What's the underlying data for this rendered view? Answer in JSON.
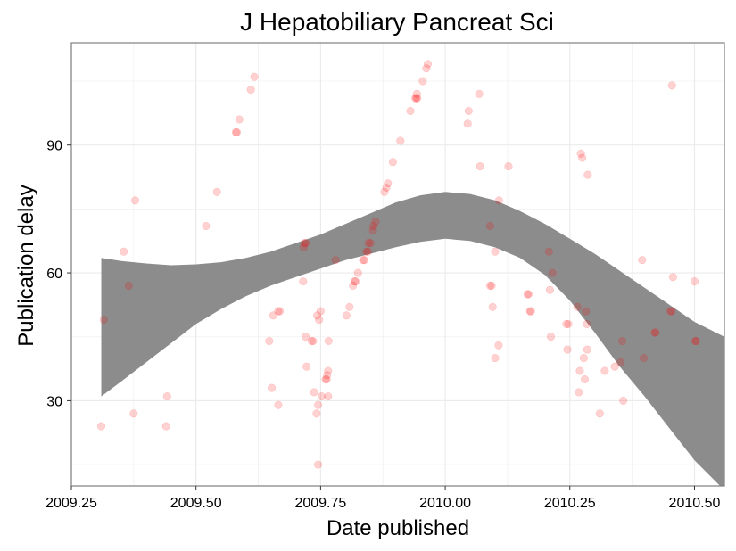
{
  "chart_data": {
    "type": "scatter",
    "title": "J Hepatobiliary Pancreat Sci",
    "xlabel": "Date published",
    "ylabel": "Publication delay",
    "xlim": [
      2009.25,
      2010.56
    ],
    "ylim": [
      10,
      114
    ],
    "x_ticks": [
      2009.25,
      2009.5,
      2009.75,
      2010.0,
      2010.25,
      2010.5
    ],
    "x_tick_labels": [
      "2009.25",
      "2009.50",
      "2009.75",
      "2010.00",
      "2010.25",
      "2010.50"
    ],
    "y_ticks": [
      30,
      60,
      90
    ],
    "y_tick_labels": [
      "30",
      "60",
      "90"
    ],
    "grid": true,
    "point_color": "#ff0000",
    "point_opacity": 0.18,
    "ribbon_color": "#8c8c8c",
    "points": [
      [
        2009.31,
        24
      ],
      [
        2009.315,
        49
      ],
      [
        2009.355,
        65
      ],
      [
        2009.365,
        57
      ],
      [
        2009.375,
        27
      ],
      [
        2009.378,
        77
      ],
      [
        2009.44,
        24
      ],
      [
        2009.442,
        31
      ],
      [
        2009.52,
        71
      ],
      [
        2009.542,
        79
      ],
      [
        2009.58,
        93
      ],
      [
        2009.582,
        93
      ],
      [
        2009.587,
        96
      ],
      [
        2009.61,
        103
      ],
      [
        2009.617,
        106
      ],
      [
        2009.647,
        44
      ],
      [
        2009.652,
        33
      ],
      [
        2009.655,
        50
      ],
      [
        2009.665,
        29
      ],
      [
        2009.665,
        51
      ],
      [
        2009.668,
        51
      ],
      [
        2009.715,
        58
      ],
      [
        2009.716,
        66
      ],
      [
        2009.718,
        67
      ],
      [
        2009.72,
        67
      ],
      [
        2009.72,
        45
      ],
      [
        2009.722,
        38
      ],
      [
        2009.732,
        44
      ],
      [
        2009.735,
        44
      ],
      [
        2009.737,
        32
      ],
      [
        2009.742,
        27
      ],
      [
        2009.745,
        15
      ],
      [
        2009.743,
        50
      ],
      [
        2009.745,
        29
      ],
      [
        2009.747,
        49
      ],
      [
        2009.75,
        51
      ],
      [
        2009.752,
        31
      ],
      [
        2009.76,
        35
      ],
      [
        2009.762,
        35
      ],
      [
        2009.763,
        36
      ],
      [
        2009.765,
        37
      ],
      [
        2009.765,
        31
      ],
      [
        2009.766,
        44
      ],
      [
        2009.78,
        63
      ],
      [
        2009.802,
        50
      ],
      [
        2009.808,
        52
      ],
      [
        2009.815,
        57
      ],
      [
        2009.818,
        58
      ],
      [
        2009.82,
        58
      ],
      [
        2009.825,
        60
      ],
      [
        2009.835,
        63
      ],
      [
        2009.838,
        63
      ],
      [
        2009.842,
        65
      ],
      [
        2009.845,
        65
      ],
      [
        2009.846,
        67
      ],
      [
        2009.85,
        67
      ],
      [
        2009.855,
        70
      ],
      [
        2009.856,
        71
      ],
      [
        2009.86,
        72
      ],
      [
        2009.878,
        79
      ],
      [
        2009.882,
        80
      ],
      [
        2009.885,
        81
      ],
      [
        2009.895,
        86
      ],
      [
        2009.91,
        91
      ],
      [
        2009.93,
        98
      ],
      [
        2009.94,
        101
      ],
      [
        2009.942,
        101
      ],
      [
        2009.943,
        102
      ],
      [
        2009.944,
        101
      ],
      [
        2009.955,
        105
      ],
      [
        2009.962,
        108
      ],
      [
        2009.965,
        109
      ],
      [
        2010.045,
        95
      ],
      [
        2010.047,
        98
      ],
      [
        2010.068,
        102
      ],
      [
        2010.07,
        85
      ],
      [
        2010.09,
        71
      ],
      [
        2010.09,
        57
      ],
      [
        2010.093,
        57
      ],
      [
        2010.095,
        52
      ],
      [
        2010.1,
        65
      ],
      [
        2010.1,
        40
      ],
      [
        2010.107,
        43
      ],
      [
        2010.108,
        77
      ],
      [
        2010.127,
        85
      ],
      [
        2010.165,
        55
      ],
      [
        2010.167,
        55
      ],
      [
        2010.17,
        51
      ],
      [
        2010.172,
        51
      ],
      [
        2010.208,
        65
      ],
      [
        2010.21,
        56
      ],
      [
        2010.212,
        45
      ],
      [
        2010.215,
        60
      ],
      [
        2010.243,
        48
      ],
      [
        2010.245,
        42
      ],
      [
        2010.247,
        48
      ],
      [
        2010.265,
        52
      ],
      [
        2010.268,
        32
      ],
      [
        2010.27,
        37
      ],
      [
        2010.272,
        88
      ],
      [
        2010.275,
        87
      ],
      [
        2010.278,
        40
      ],
      [
        2010.28,
        35
      ],
      [
        2010.282,
        51
      ],
      [
        2010.284,
        48
      ],
      [
        2010.286,
        83
      ],
      [
        2010.285,
        42
      ],
      [
        2010.31,
        27
      ],
      [
        2010.32,
        37
      ],
      [
        2010.34,
        38
      ],
      [
        2010.352,
        39
      ],
      [
        2010.355,
        44
      ],
      [
        2010.357,
        30
      ],
      [
        2010.395,
        63
      ],
      [
        2010.398,
        40
      ],
      [
        2010.42,
        46
      ],
      [
        2010.422,
        46
      ],
      [
        2010.452,
        51
      ],
      [
        2010.454,
        51
      ],
      [
        2010.455,
        104
      ],
      [
        2010.457,
        59
      ],
      [
        2010.5,
        58
      ],
      [
        2010.502,
        44
      ],
      [
        2010.503,
        44
      ]
    ],
    "ribbon": {
      "x": [
        2009.31,
        2009.35,
        2009.4,
        2009.45,
        2009.5,
        2009.55,
        2009.6,
        2009.65,
        2009.7,
        2009.75,
        2009.8,
        2009.85,
        2009.9,
        2009.95,
        2010.0,
        2010.05,
        2010.1,
        2010.15,
        2010.2,
        2010.25,
        2010.3,
        2010.35,
        2010.4,
        2010.45,
        2010.5,
        2010.56
      ],
      "upper": [
        63.5,
        62.8,
        62.2,
        61.8,
        62.0,
        62.5,
        63.5,
        65.0,
        67.0,
        69.0,
        71.5,
        74.0,
        76.5,
        78.2,
        79.0,
        78.5,
        77.0,
        74.5,
        71.5,
        68.0,
        64.5,
        60.5,
        56.5,
        52.5,
        48.5,
        45.0
      ],
      "lower": [
        31.0,
        34.5,
        39.0,
        43.5,
        48.0,
        51.5,
        54.5,
        57.0,
        59.0,
        61.0,
        63.0,
        64.5,
        66.0,
        67.3,
        68.0,
        67.5,
        66.0,
        63.5,
        59.5,
        53.5,
        46.0,
        38.0,
        31.0,
        23.5,
        16.0,
        9.0
      ]
    }
  }
}
